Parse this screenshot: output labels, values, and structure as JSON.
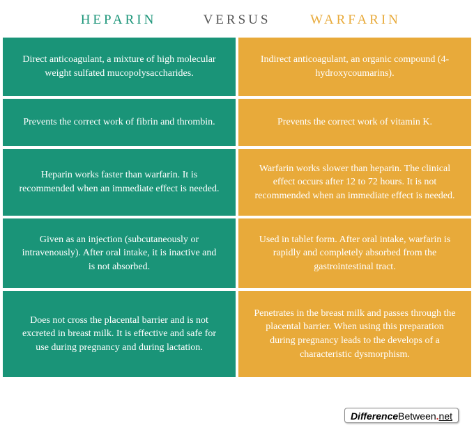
{
  "header": {
    "left": "HEPARIN",
    "middle": "VERSUS",
    "right": "WARFARIN"
  },
  "colors": {
    "left_bg": "#1a9478",
    "right_bg": "#e8aa3a",
    "left_title": "#1a9478",
    "right_title": "#e8aa3a",
    "versus": "#555555",
    "cell_text": "#ffffff",
    "page_bg": "#ffffff"
  },
  "type": "comparison-table",
  "rows": [
    {
      "left": "Direct anticoagulant, a mixture of high molecular weight sulfated mucopolysaccharides.",
      "right": "Indirect anticoagulant, an organic compound (4-hydroxycoumarins)."
    },
    {
      "left": "Prevents the correct work of fibrin and thrombin.",
      "right": "Prevents the correct work of vitamin K."
    },
    {
      "left": "Heparin works faster than warfarin. It is recommended when an immediate effect is needed.",
      "right": "Warfarin works slower than heparin. The clinical effect occurs after 12 to 72 hours. It is not recommended when an immediate effect is needed."
    },
    {
      "left": "Given as an injection (subcutaneously or intravenously). After oral intake, it is inactive and is not absorbed.",
      "right": "Used in tablet form. After oral intake, warfarin is rapidly and completely absorbed from the gastrointestinal tract."
    },
    {
      "left": "Does not cross the placental barrier and is not excreted in breast milk. It is effective and safe for use during pregnancy and during lactation.",
      "right": "Penetrates in the breast milk and passes through the placental barrier. When using this preparation during pregnancy leads to the develops of a characteristic dysmorphism."
    }
  ],
  "badge": {
    "part1": "Difference",
    "part2": "Between",
    "dot": ".",
    "tld": "net"
  }
}
